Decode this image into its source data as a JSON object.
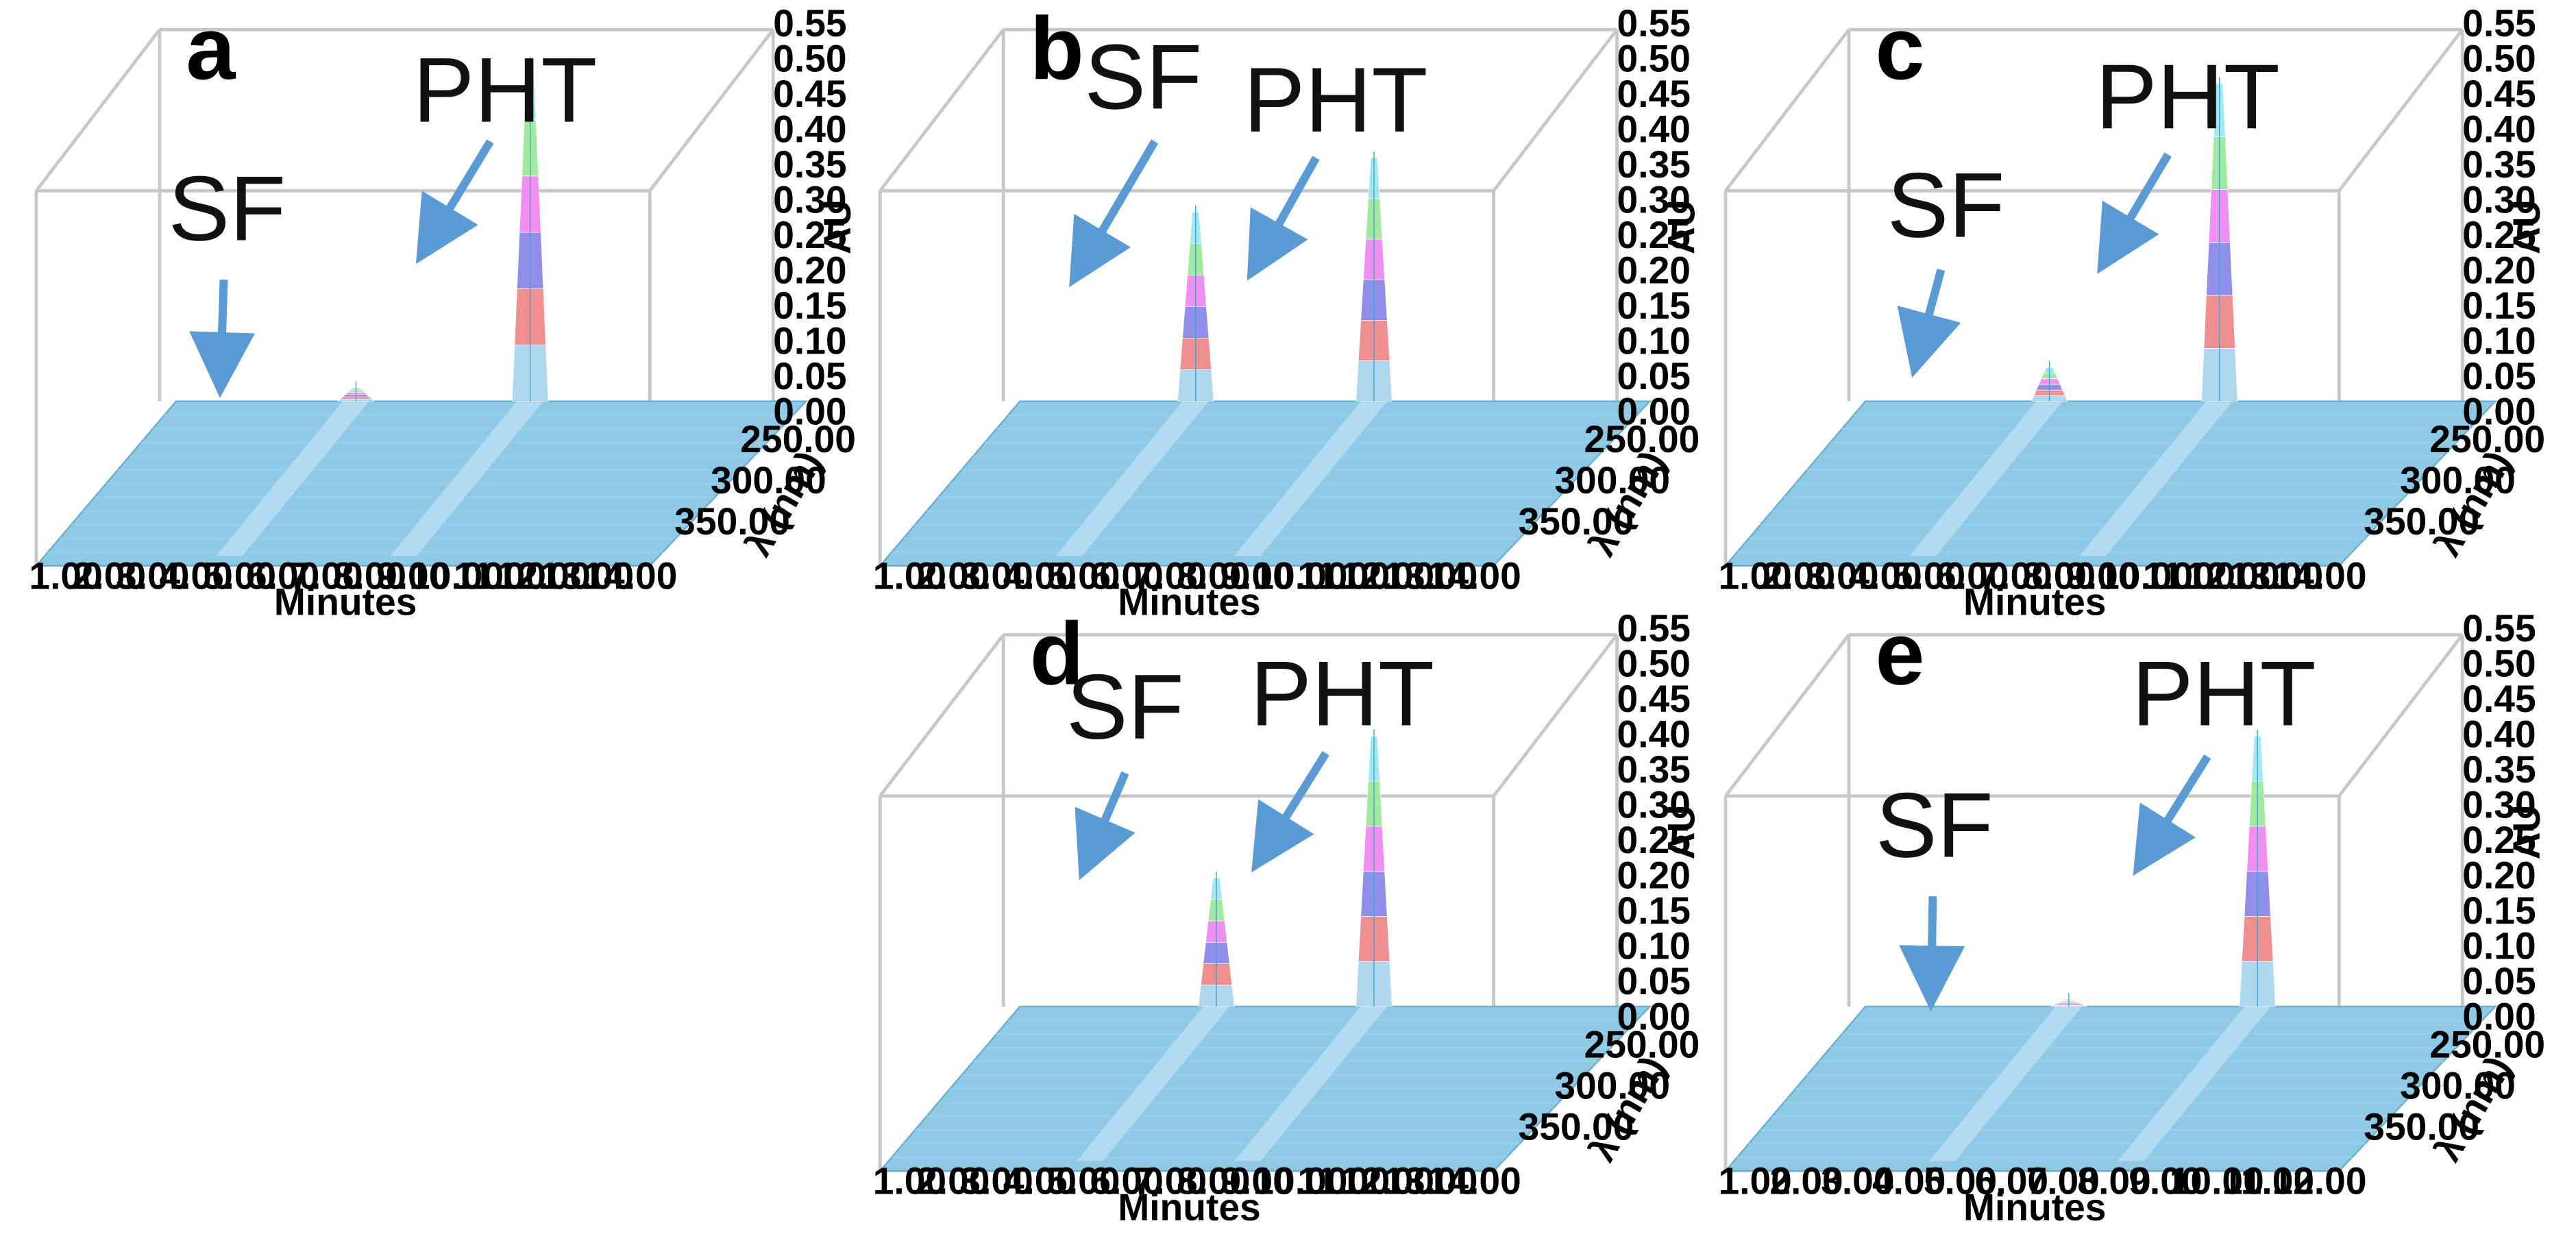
{
  "figure": {
    "colors": {
      "surface": "#8ec9e6",
      "surface_edge": "#6aaed0",
      "band_colors": [
        "#a9d6ee",
        "#f08a8a",
        "#8a8ae8",
        "#f08af0",
        "#9be89b",
        "#9be8f0"
      ],
      "arrow": "#5b9bd5",
      "frame": "#c8c8c8"
    }
  },
  "chart_data": [
    {
      "type": "area",
      "panel_label": "a",
      "xlabel": "Minutes",
      "ylabel": "AU",
      "zlabel": "λ (nm)",
      "x_ticks": [
        "1.00",
        "2.00",
        "3.00",
        "4.00",
        "5.00",
        "6.00",
        "7.00",
        "8.00",
        "9.00",
        "10.00",
        "11.00",
        "12.00",
        "13.00",
        "14.00"
      ],
      "xlim": [
        0,
        14
      ],
      "y_ticks": [
        "0.00",
        "0.05",
        "0.10",
        "0.15",
        "0.20",
        "0.25",
        "0.30",
        "0.35",
        "0.40",
        "0.45",
        "0.50",
        "0.55"
      ],
      "ylim": [
        0,
        0.55
      ],
      "z_ticks": [
        "250.00",
        "300.00",
        "350.00"
      ],
      "peaks": [
        {
          "name": "SF",
          "retention_min": 4.1,
          "height_au": 0.02
        },
        {
          "name": "PHT",
          "retention_min": 8.3,
          "height_au": 0.5
        }
      ],
      "annotations": [
        {
          "text": "SF",
          "target": "SF"
        },
        {
          "text": "PHT",
          "target": "PHT"
        }
      ]
    },
    {
      "type": "area",
      "panel_label": "b",
      "xlabel": "Minutes",
      "ylabel": "AU",
      "zlabel": "λ (nm)",
      "x_ticks": [
        "1.00",
        "2.00",
        "3.00",
        "4.00",
        "5.00",
        "6.00",
        "7.00",
        "8.00",
        "9.00",
        "10.00",
        "11.00",
        "12.00",
        "13.00",
        "14.00"
      ],
      "xlim": [
        0,
        14
      ],
      "y_ticks": [
        "0.00",
        "0.05",
        "0.10",
        "0.15",
        "0.20",
        "0.25",
        "0.30",
        "0.35",
        "0.40",
        "0.45",
        "0.50",
        "0.55"
      ],
      "ylim": [
        0,
        0.55
      ],
      "z_ticks": [
        "250.00",
        "300.00",
        "350.00"
      ],
      "peaks": [
        {
          "name": "SF",
          "retention_min": 4.0,
          "height_au": 0.28
        },
        {
          "name": "PHT",
          "retention_min": 8.3,
          "height_au": 0.36
        }
      ],
      "annotations": [
        {
          "text": "SF",
          "target": "SF"
        },
        {
          "text": "PHT",
          "target": "PHT"
        }
      ]
    },
    {
      "type": "area",
      "panel_label": "c",
      "xlabel": "Minutes",
      "ylabel": "AU",
      "zlabel": "λ (nm)",
      "x_ticks": [
        "1.00",
        "2.00",
        "3.00",
        "4.00",
        "5.00",
        "6.00",
        "7.00",
        "8.00",
        "9.00",
        "10.00",
        "11.00",
        "12.00",
        "13.00",
        "14.00"
      ],
      "xlim": [
        0,
        14
      ],
      "y_ticks": [
        "0.00",
        "0.05",
        "0.10",
        "0.15",
        "0.20",
        "0.25",
        "0.30",
        "0.35",
        "0.40",
        "0.45",
        "0.50",
        "0.55"
      ],
      "ylim": [
        0,
        0.55
      ],
      "z_ticks": [
        "250.00",
        "300.00",
        "350.00"
      ],
      "peaks": [
        {
          "name": "SF",
          "retention_min": 4.2,
          "height_au": 0.05
        },
        {
          "name": "PHT",
          "retention_min": 8.3,
          "height_au": 0.47
        }
      ],
      "annotations": [
        {
          "text": "SF",
          "target": "SF"
        },
        {
          "text": "PHT",
          "target": "PHT"
        }
      ]
    },
    {
      "type": "area",
      "panel_label": "d",
      "xlabel": "Minutes",
      "ylabel": "AU",
      "zlabel": "λ (nm)",
      "x_ticks": [
        "1.00",
        "2.00",
        "3.00",
        "4.00",
        "5.00",
        "6.00",
        "7.00",
        "8.00",
        "9.00",
        "10.00",
        "11.00",
        "12.00",
        "13.00",
        "14.00"
      ],
      "xlim": [
        0,
        14
      ],
      "y_ticks": [
        "0.00",
        "0.05",
        "0.10",
        "0.15",
        "0.20",
        "0.25",
        "0.30",
        "0.35",
        "0.40",
        "0.45",
        "0.50",
        "0.55"
      ],
      "ylim": [
        0,
        0.55
      ],
      "z_ticks": [
        "250.00",
        "300.00",
        "350.00"
      ],
      "peaks": [
        {
          "name": "SF",
          "retention_min": 4.5,
          "height_au": 0.19
        },
        {
          "name": "PHT",
          "retention_min": 8.3,
          "height_au": 0.4
        }
      ],
      "annotations": [
        {
          "text": "SF",
          "target": "SF"
        },
        {
          "text": "PHT",
          "target": "PHT"
        }
      ]
    },
    {
      "type": "area",
      "panel_label": "e",
      "xlabel": "Minutes",
      "ylabel": "AU",
      "zlabel": "λ (nm)",
      "x_ticks": [
        "1.00",
        "2.00",
        "3.00",
        "4.00",
        "5.00",
        "6.00",
        "7.00",
        "8.00",
        "9.00",
        "10.00",
        "11.00",
        "12.00"
      ],
      "xlim": [
        0,
        12
      ],
      "y_ticks": [
        "0.00",
        "0.05",
        "0.10",
        "0.15",
        "0.20",
        "0.25",
        "0.30",
        "0.35",
        "0.40",
        "0.45",
        "0.50",
        "0.55"
      ],
      "ylim": [
        0,
        0.55
      ],
      "z_ticks": [
        "250.00",
        "300.00",
        "350.00"
      ],
      "peaks": [
        {
          "name": "SF",
          "retention_min": 4.0,
          "height_au": 0.01
        },
        {
          "name": "PHT",
          "retention_min": 7.9,
          "height_au": 0.4
        }
      ],
      "annotations": [
        {
          "text": "SF",
          "target": "SF"
        },
        {
          "text": "PHT",
          "target": "PHT"
        }
      ]
    }
  ]
}
